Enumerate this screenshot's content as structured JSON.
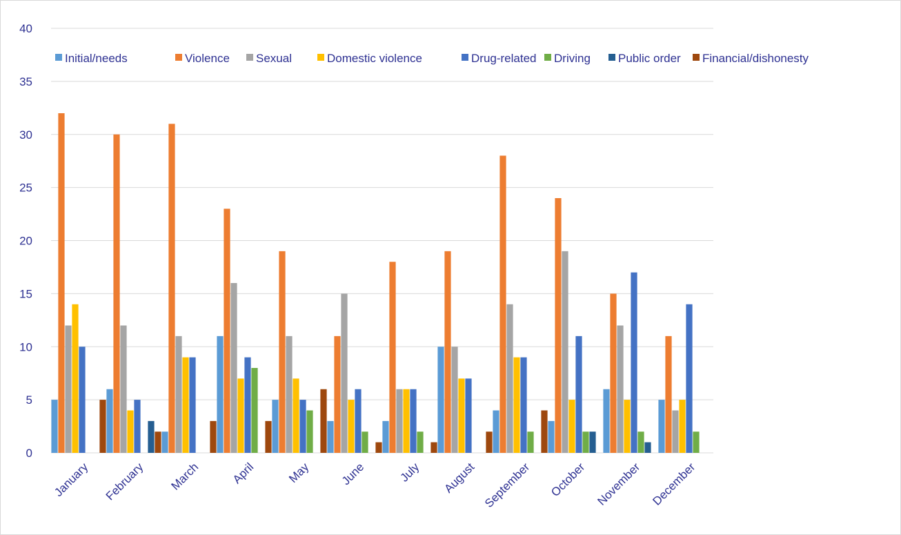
{
  "chart_data": {
    "type": "bar",
    "title": "",
    "xlabel": "",
    "ylabel": "",
    "ylim": [
      0,
      40
    ],
    "yticks": [
      0,
      5,
      10,
      15,
      20,
      25,
      30,
      35,
      40
    ],
    "grid": true,
    "legend_position": "top",
    "categories": [
      "January",
      "February",
      "March",
      "April",
      "May",
      "June",
      "July",
      "August",
      "September",
      "October",
      "November",
      "December"
    ],
    "series": [
      {
        "name": "Initial/needs",
        "color": "#5b9bd5",
        "values": [
          5,
          6,
          2,
          11,
          5,
          3,
          3,
          10,
          4,
          3,
          6,
          5
        ]
      },
      {
        "name": "Violence",
        "color": "#ed7d31",
        "values": [
          32,
          30,
          31,
          23,
          19,
          11,
          18,
          19,
          28,
          24,
          15,
          11
        ]
      },
      {
        "name": "Sexual",
        "color": "#a5a5a5",
        "values": [
          12,
          12,
          11,
          16,
          11,
          15,
          6,
          10,
          14,
          19,
          12,
          4
        ]
      },
      {
        "name": "Domestic violence",
        "color": "#ffc000",
        "values": [
          14,
          4,
          9,
          7,
          7,
          5,
          6,
          7,
          9,
          5,
          5,
          5
        ]
      },
      {
        "name": "Drug-related",
        "color": "#4472c4",
        "values": [
          10,
          5,
          9,
          9,
          5,
          6,
          6,
          7,
          9,
          11,
          17,
          14
        ]
      },
      {
        "name": "Driving",
        "color": "#70ad47",
        "values": [
          0,
          0,
          0,
          8,
          4,
          2,
          2,
          0,
          2,
          2,
          2,
          2
        ]
      },
      {
        "name": "Public order",
        "color": "#255e91",
        "values": [
          0,
          3,
          0,
          0,
          0,
          0,
          0,
          0,
          0,
          2,
          1,
          0
        ]
      },
      {
        "name": "Financial/dishonesty",
        "color": "#9e480e",
        "values": [
          5,
          2,
          3,
          3,
          6,
          1,
          1,
          2,
          4,
          0,
          0,
          0
        ]
      }
    ]
  }
}
